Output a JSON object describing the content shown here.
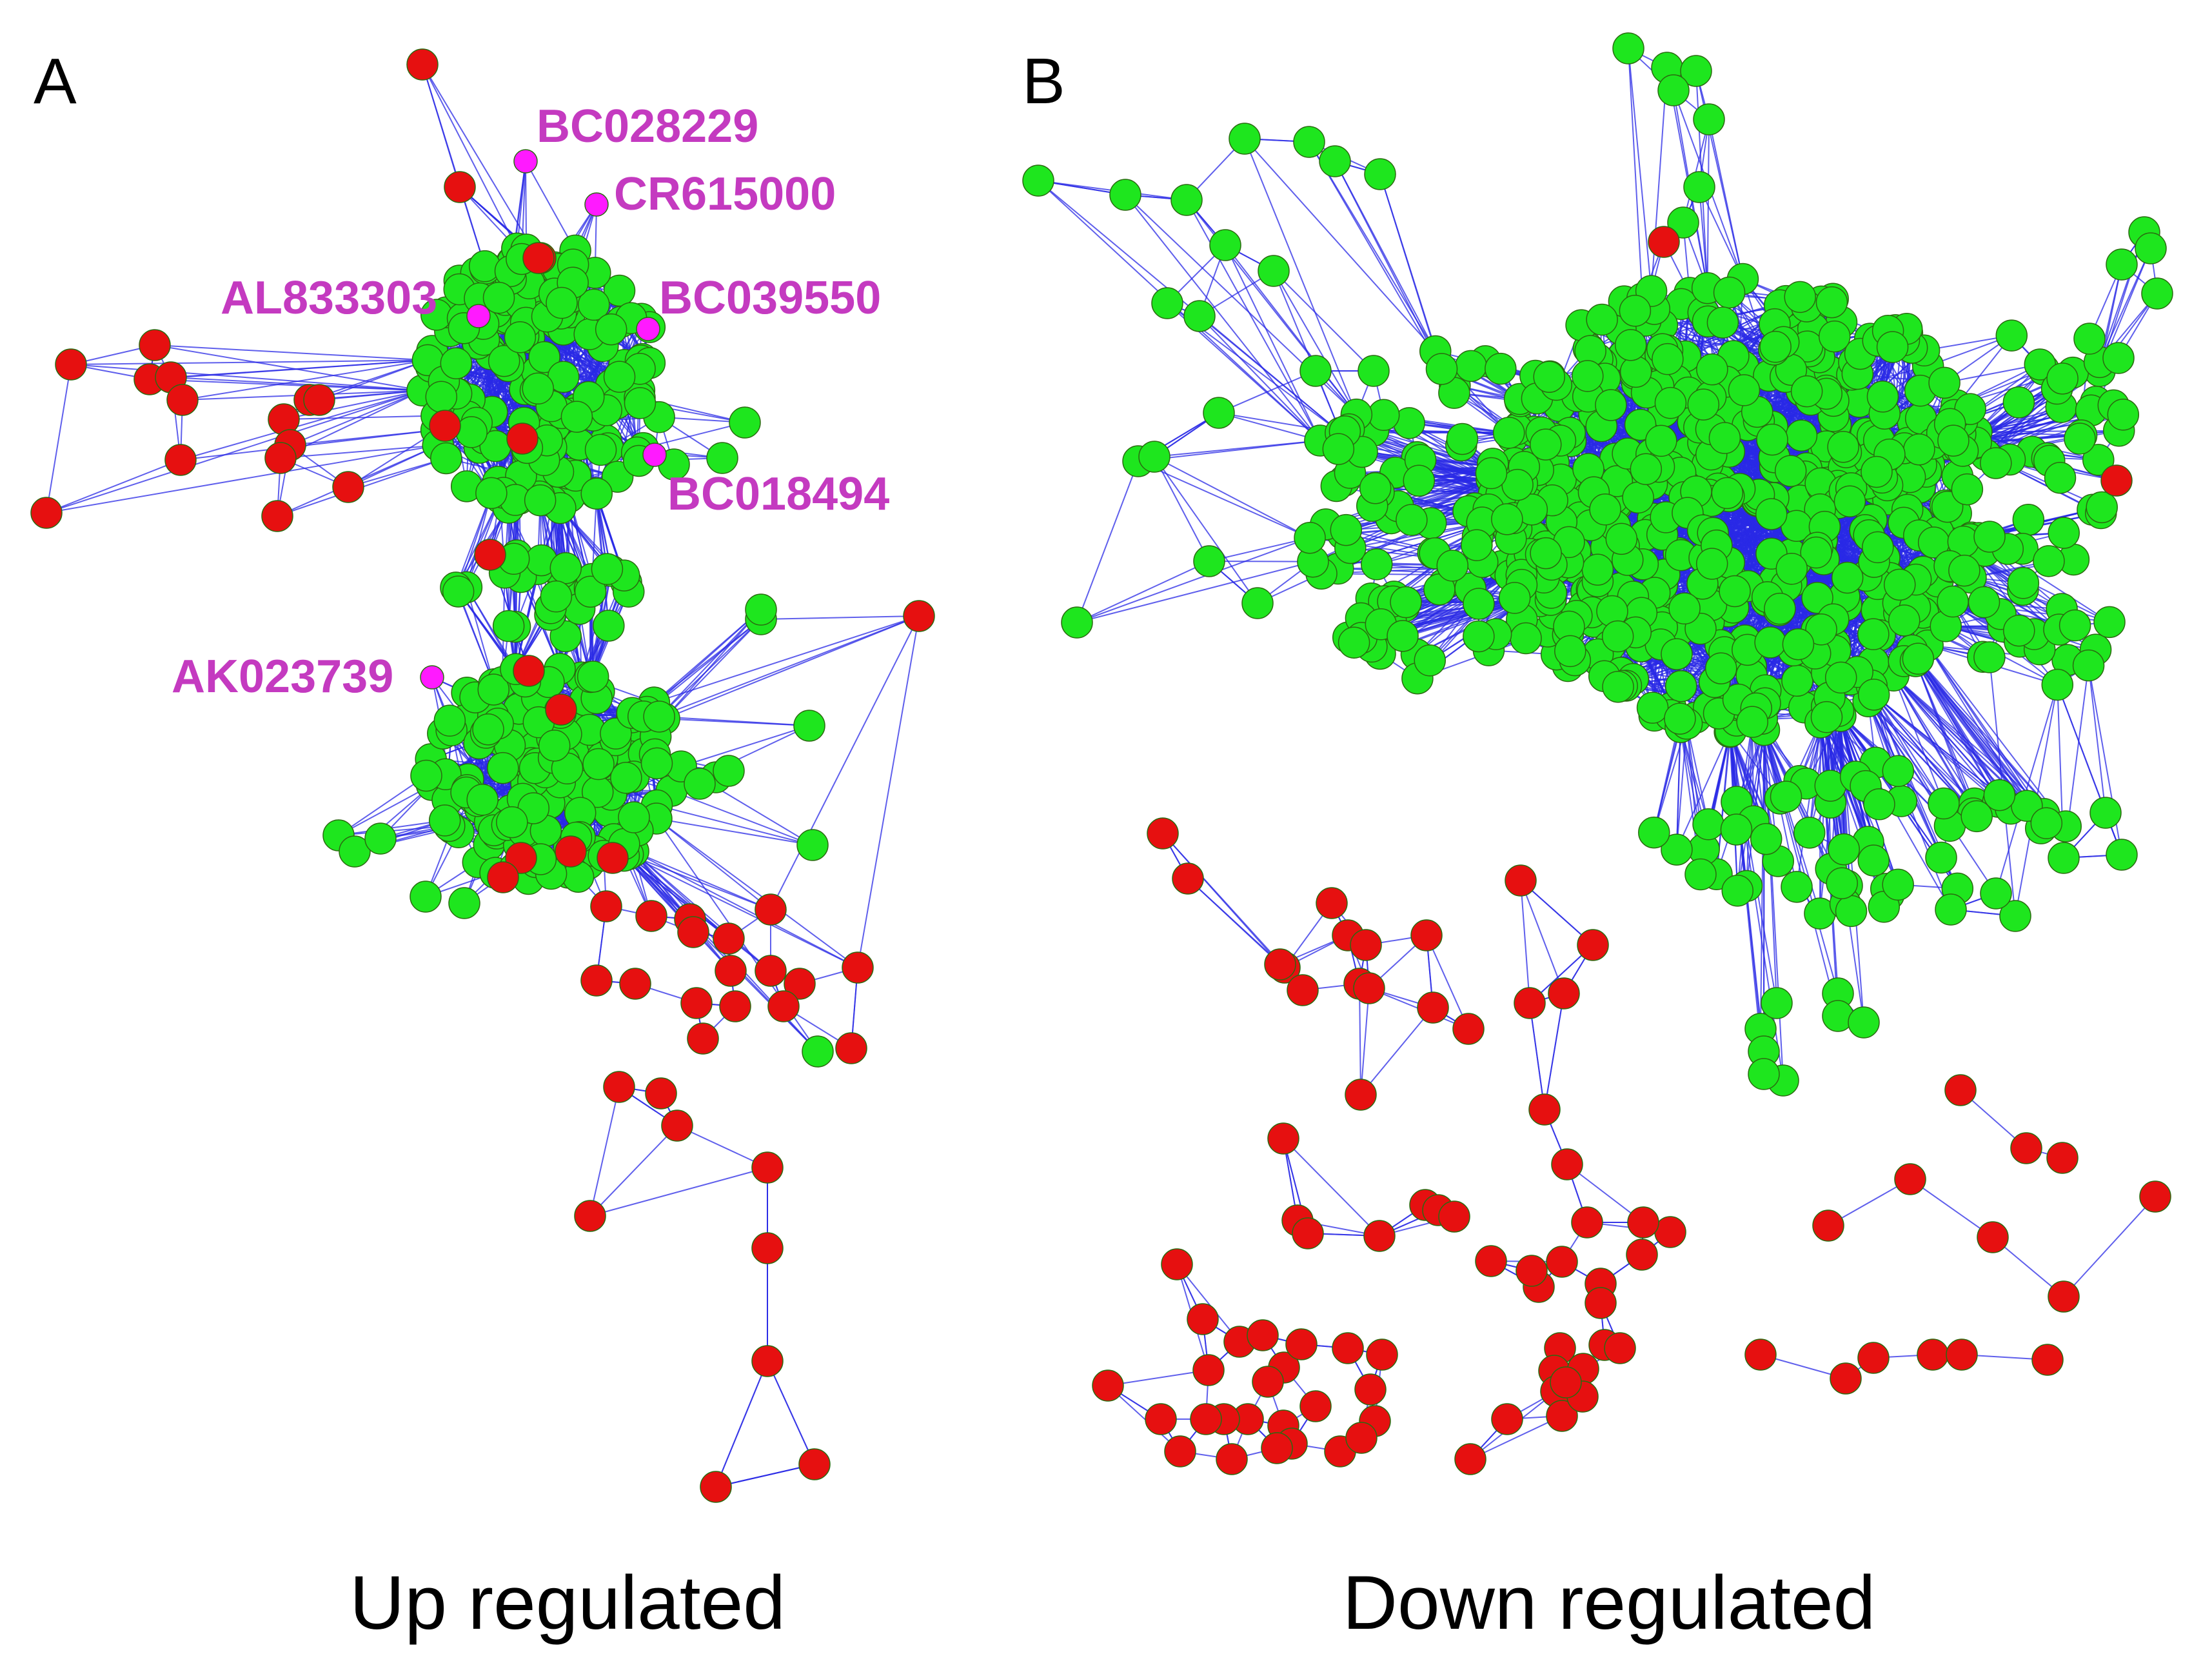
{
  "figure": {
    "panel_a": {
      "letter": "A",
      "caption": "Up regulated",
      "gene_labels": [
        "BC028229",
        "CR615000",
        "AL833303",
        "BC039550",
        "BC018494",
        "AK023739"
      ]
    },
    "panel_b": {
      "letter": "B",
      "caption": "Down regulated"
    },
    "colors": {
      "background": "#ffffff",
      "edge": "#2a2ae6",
      "node_green": "#1ee61e",
      "node_red": "#e61010",
      "node_magenta": "#ff1aff",
      "label_magenta": "#c43ac0"
    }
  }
}
